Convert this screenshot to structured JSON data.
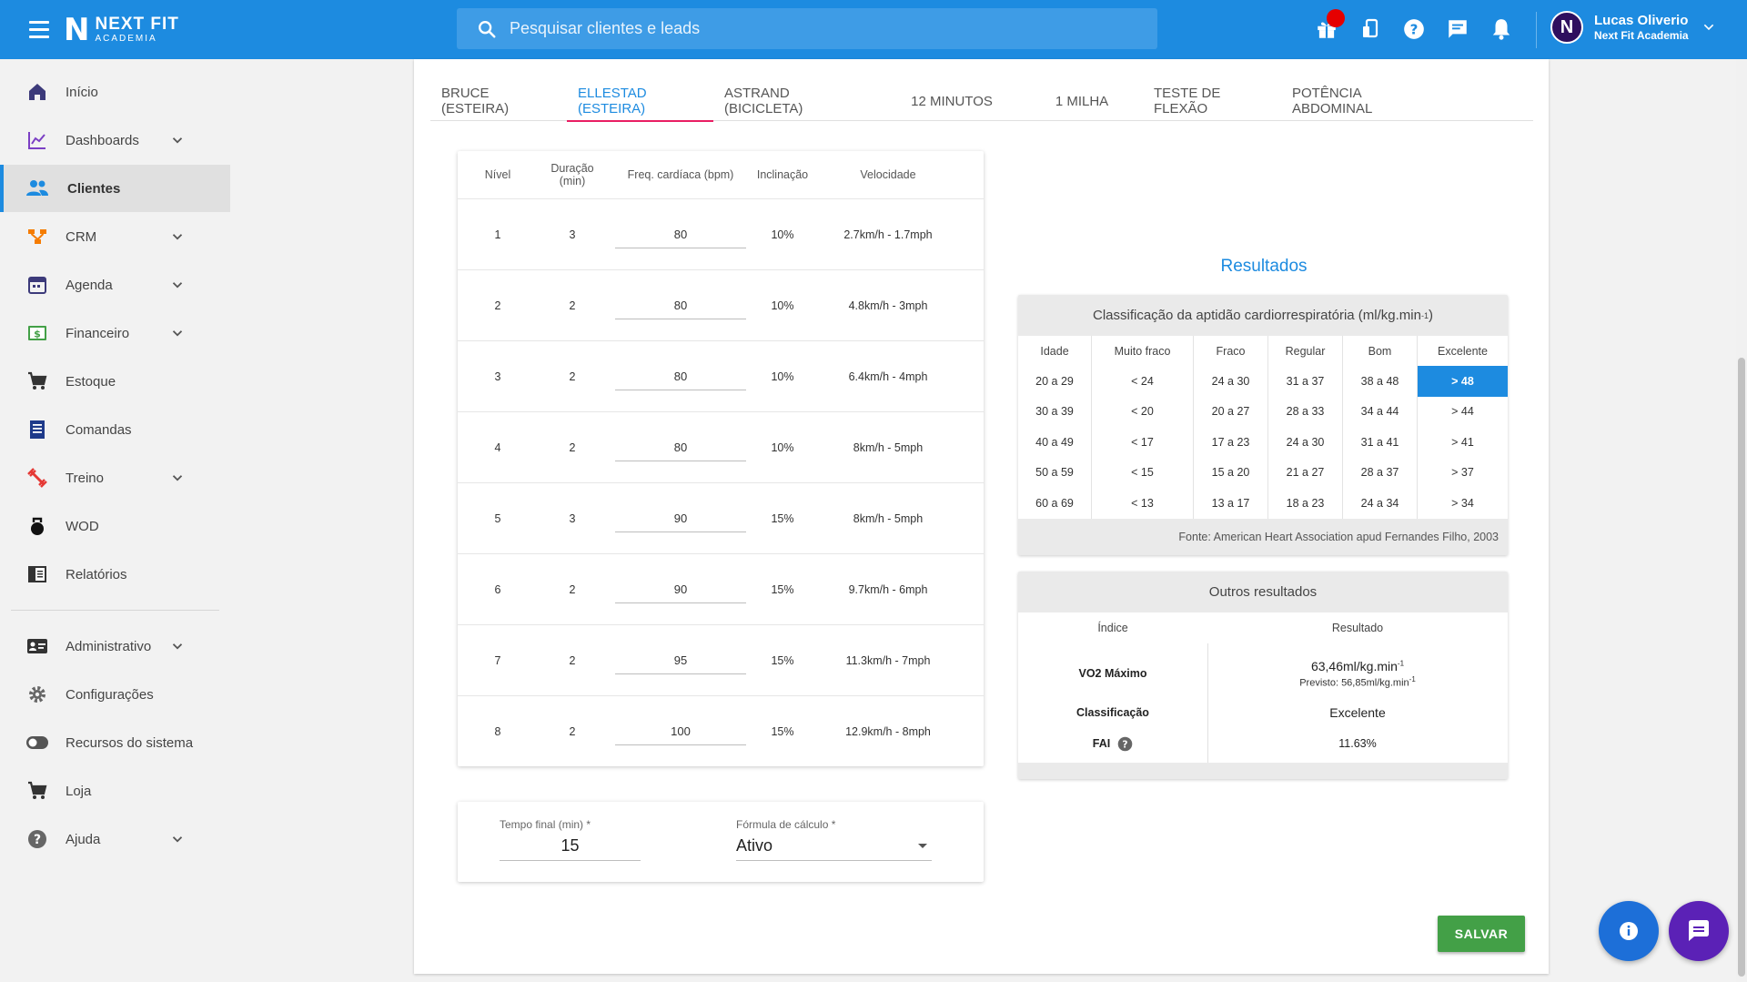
{
  "app": {
    "logo_line1": "NEXT FIT",
    "logo_line2": "ACADEMIA",
    "logo_mark": "N"
  },
  "search": {
    "placeholder": "Pesquisar clientes e leads"
  },
  "user": {
    "name": "Lucas Oliverio",
    "org": "Next Fit Academia",
    "avatar_letter": "N"
  },
  "sidebar": {
    "items": [
      {
        "label": "Início",
        "icon": "home-icon"
      },
      {
        "label": "Dashboards",
        "icon": "chart-icon"
      },
      {
        "label": "Clientes",
        "icon": "people-icon"
      },
      {
        "label": "CRM",
        "icon": "crm-icon"
      },
      {
        "label": "Agenda",
        "icon": "calendar-icon"
      },
      {
        "label": "Financeiro",
        "icon": "money-icon"
      },
      {
        "label": "Estoque",
        "icon": "cart-icon"
      },
      {
        "label": "Comandas",
        "icon": "receipt-icon"
      },
      {
        "label": "Treino",
        "icon": "dumbbell-icon"
      },
      {
        "label": "WOD",
        "icon": "kettlebell-icon"
      },
      {
        "label": "Relatórios",
        "icon": "report-icon"
      },
      {
        "label": "Administrativo",
        "icon": "id-card-icon"
      },
      {
        "label": "Configurações",
        "icon": "gear-icon"
      },
      {
        "label": "Recursos do sistema",
        "icon": "toggle-icon"
      },
      {
        "label": "Loja",
        "icon": "cart-icon"
      },
      {
        "label": "Ajuda",
        "icon": "help-icon"
      }
    ]
  },
  "tabs": [
    "BRUCE (ESTEIRA)",
    "ELLESTAD (ESTEIRA)",
    "ASTRAND (BICICLETA)",
    "12 MINUTOS",
    "1 MILHA",
    "TESTE DE FLEXÃO",
    "POTÊNCIA ABDOMINAL"
  ],
  "stages": {
    "headers": {
      "level": "Nível",
      "duration": "Duração (min)",
      "hr": "Freq. cardíaca (bpm)",
      "incline": "Inclinação",
      "speed": "Velocidade"
    },
    "rows": [
      {
        "level": "1",
        "duration": "3",
        "hr": "80",
        "incline": "10%",
        "speed": "2.7km/h - 1.7mph"
      },
      {
        "level": "2",
        "duration": "2",
        "hr": "80",
        "incline": "10%",
        "speed": "4.8km/h - 3mph"
      },
      {
        "level": "3",
        "duration": "2",
        "hr": "80",
        "incline": "10%",
        "speed": "6.4km/h - 4mph"
      },
      {
        "level": "4",
        "duration": "2",
        "hr": "80",
        "incline": "10%",
        "speed": "8km/h - 5mph"
      },
      {
        "level": "5",
        "duration": "3",
        "hr": "90",
        "incline": "15%",
        "speed": "8km/h - 5mph"
      },
      {
        "level": "6",
        "duration": "2",
        "hr": "90",
        "incline": "15%",
        "speed": "9.7km/h - 6mph"
      },
      {
        "level": "7",
        "duration": "2",
        "hr": "95",
        "incline": "15%",
        "speed": "11.3km/h - 7mph"
      },
      {
        "level": "8",
        "duration": "2",
        "hr": "100",
        "incline": "15%",
        "speed": "12.9km/h - 8mph"
      }
    ]
  },
  "form": {
    "final_time_label": "Tempo final (min) *",
    "final_time_value": "15",
    "formula_label": "Fórmula de cálculo *",
    "formula_value": "Ativo"
  },
  "results": {
    "title": "Resultados",
    "classification_title": "Classificação da aptidão cardiorrespiratória (ml/kg.min",
    "classification_title_sup": "-1",
    "classification_title_end": ")",
    "headers": [
      "Idade",
      "Muito fraco",
      "Fraco",
      "Regular",
      "Bom",
      "Excelente"
    ],
    "rows": [
      [
        "20 a 29",
        "< 24",
        "24 a 30",
        "31 a 37",
        "38 a 48",
        "> 48"
      ],
      [
        "30 a 39",
        "< 20",
        "20 a 27",
        "28 a 33",
        "34 a 44",
        "> 44"
      ],
      [
        "40 a 49",
        "< 17",
        "17 a 23",
        "24 a 30",
        "31 a 41",
        "> 41"
      ],
      [
        "50 a 59",
        "< 15",
        "15 a 20",
        "21 a 27",
        "28 a 37",
        "> 37"
      ],
      [
        "60 a 69",
        "< 13",
        "13 a 17",
        "18 a 23",
        "24 a 34",
        "> 34"
      ]
    ],
    "highlight": {
      "row": 0,
      "col": 5
    },
    "source": "Fonte: American Heart Association apud Fernandes Filho, 2003",
    "others_title": "Outros resultados",
    "others_head_index": "Índice",
    "others_head_result": "Resultado",
    "vo2_label": "VO2 Máximo",
    "vo2_value": "63,46ml/kg.min",
    "vo2_sup": "-1",
    "vo2_predicted": "Previsto: 56,85ml/kg.min",
    "vo2_predicted_sup": "-1",
    "class_label": "Classificação",
    "class_value": "Excelente",
    "fai_label": "FAI",
    "fai_value": "11.63%"
  },
  "save_label": "SALVAR",
  "colors": {
    "primary": "#1d8be0",
    "tab_indicator": "#e91e63",
    "save": "#43a047",
    "chat": "#5b21b6"
  }
}
